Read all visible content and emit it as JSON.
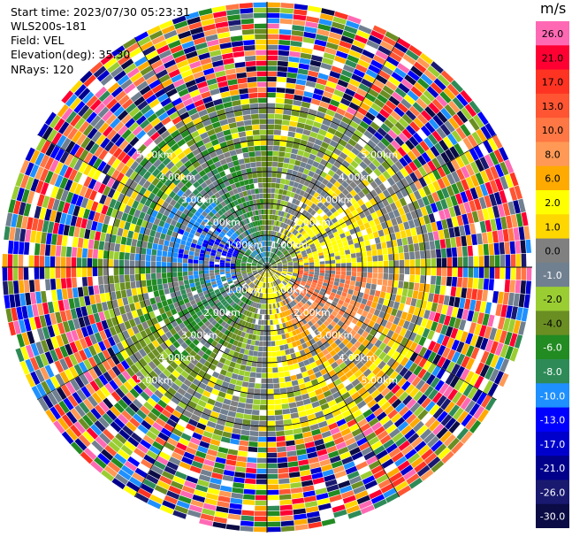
{
  "header": {
    "start_time": "Start time: 2023/07/30 05:23:31",
    "instrument": "WLS200s-181",
    "field": "Field: VEL",
    "elevation": "Elevation(deg): 35.30",
    "nrays": "NRays: 120"
  },
  "colorbar": {
    "unit": "m/s",
    "levels": [
      {
        "label": "26.0",
        "color": "#ff69b4",
        "text_color": "#000000"
      },
      {
        "label": "21.0",
        "color": "#ff0033",
        "text_color": "#000000"
      },
      {
        "label": "17.0",
        "color": "#ff3322",
        "text_color": "#000000"
      },
      {
        "label": "13.0",
        "color": "#ff5533",
        "text_color": "#000000"
      },
      {
        "label": "10.0",
        "color": "#ff7744",
        "text_color": "#000000"
      },
      {
        "label": "8.0",
        "color": "#ff9955",
        "text_color": "#000000"
      },
      {
        "label": "6.0",
        "color": "#ffaa00",
        "text_color": "#000000"
      },
      {
        "label": "2.0",
        "color": "#ffff00",
        "text_color": "#000000"
      },
      {
        "label": "1.0",
        "color": "#ffd700",
        "text_color": "#000000"
      },
      {
        "label": "0.0",
        "color": "#808080",
        "text_color": "#000000"
      },
      {
        "label": "-1.0",
        "color": "#708090",
        "text_color": "#ffffff"
      },
      {
        "label": "-2.0",
        "color": "#9acd32",
        "text_color": "#000000"
      },
      {
        "label": "-4.0",
        "color": "#6b8e23",
        "text_color": "#000000"
      },
      {
        "label": "-6.0",
        "color": "#228b22",
        "text_color": "#ffffff"
      },
      {
        "label": "-8.0",
        "color": "#2e8b57",
        "text_color": "#ffffff"
      },
      {
        "label": "-10.0",
        "color": "#1e90ff",
        "text_color": "#ffffff"
      },
      {
        "label": "-13.0",
        "color": "#0000ff",
        "text_color": "#ffffff"
      },
      {
        "label": "-17.0",
        "color": "#0000cd",
        "text_color": "#ffffff"
      },
      {
        "label": "-21.0",
        "color": "#00008b",
        "text_color": "#ffffff"
      },
      {
        "label": "-26.0",
        "color": "#191970",
        "text_color": "#ffffff"
      },
      {
        "label": "-30.0",
        "color": "#0b0b45",
        "text_color": "#ffffff"
      }
    ]
  },
  "chart_data": {
    "type": "heatmap",
    "projection": "polar",
    "field": "VEL",
    "range_rings_km": [
      1.0,
      2.0,
      3.0,
      4.0,
      5.0
    ],
    "ring_labels": [
      "1.00km",
      "2.00km",
      "3.00km",
      "4.00km",
      "5.00km"
    ],
    "max_range_km": 5.0,
    "nrays": 120,
    "grid": true
  }
}
